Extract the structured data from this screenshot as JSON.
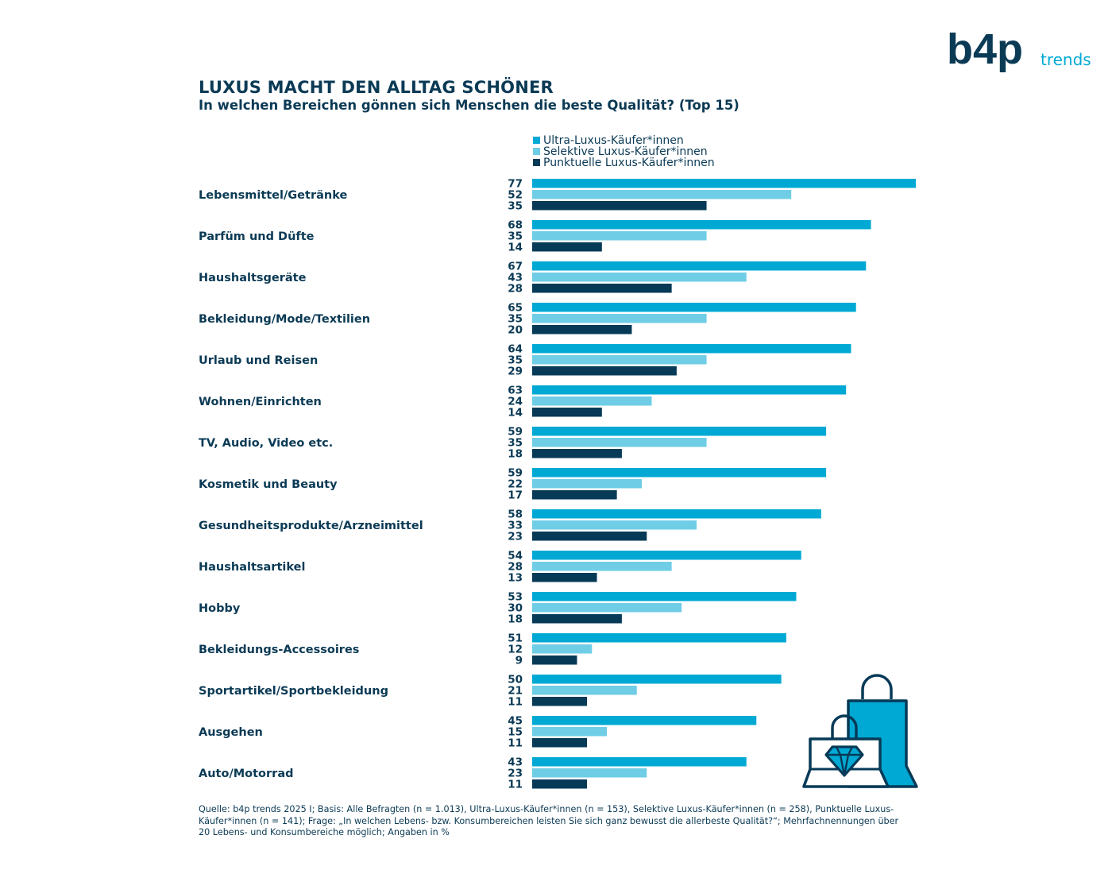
{
  "brand": {
    "logo_text": "b4p",
    "trends": "trends"
  },
  "header": {
    "title": "LUXUS MACHT DEN ALLTAG SCHÖNER",
    "subtitle": "In welchen Bereichen gönnen sich Menschen die beste Qualität? (Top 15)"
  },
  "colors": {
    "ultra": "#00a9d4",
    "selektiv": "#6fcde6",
    "punktuell": "#063a57",
    "text": "#0b3a55"
  },
  "chart_data": {
    "type": "bar",
    "orientation": "horizontal",
    "title": "LUXUS MACHT DEN ALLTAG SCHÖNER",
    "subtitle": "In welchen Bereichen gönnen sich Menschen die beste Qualität? (Top 15)",
    "xlim": [
      0,
      77
    ],
    "grid": false,
    "legend_position": "top",
    "categories": [
      "Lebensmittel/Getränke",
      "Parfüm und Düfte",
      "Haushaltsgeräte",
      "Bekleidung/Mode/Textilien",
      "Urlaub und Reisen",
      "Wohnen/Einrichten",
      "TV, Audio, Video etc.",
      "Kosmetik und Beauty",
      "Gesundheitsprodukte/Arzneimittel",
      "Haushaltsartikel",
      "Hobby",
      "Bekleidungs-Accessoires",
      "Sportartikel/Sportbekleidung",
      "Ausgehen",
      "Auto/Motorrad"
    ],
    "series": [
      {
        "name": "Ultra-Luxus-Käufer*innen",
        "color": "#00a9d4",
        "values": [
          77,
          68,
          67,
          65,
          64,
          63,
          59,
          59,
          58,
          54,
          53,
          51,
          50,
          45,
          43
        ]
      },
      {
        "name": "Selektive Luxus-Käufer*innen",
        "color": "#6fcde6",
        "values": [
          52,
          35,
          43,
          35,
          35,
          24,
          35,
          22,
          33,
          28,
          30,
          12,
          21,
          15,
          23
        ]
      },
      {
        "name": "Punktuelle Luxus-Käufer*innen",
        "color": "#063a57",
        "values": [
          35,
          14,
          28,
          20,
          29,
          14,
          18,
          17,
          23,
          13,
          18,
          9,
          11,
          11,
          11
        ]
      }
    ]
  },
  "footnote": "Quelle: b4p trends 2025 I; Basis: Alle Befragten (n = 1.013), Ultra-Luxus-Käufer*innen (n = 153), Selektive Luxus-Käufer*innen (n = 258),  Punktuelle Luxus-Käufer*innen (n = 141); Frage: „In welchen Lebens- bzw. Konsumbereichen leisten Sie sich ganz bewusst die allerbeste Qualität?“; Mehrfachnennungen über 20 Lebens- und Konsumbereiche möglich; Angaben in %"
}
